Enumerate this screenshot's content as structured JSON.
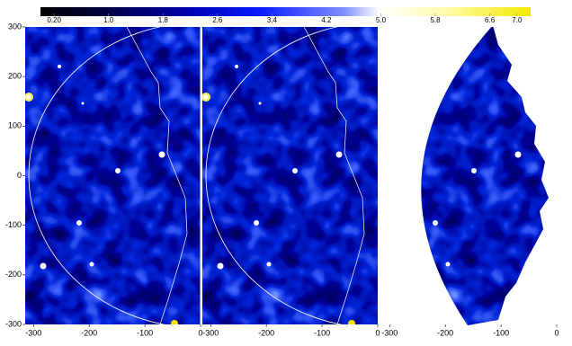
{
  "chart_data": {
    "type": "heatmap",
    "colorbar": {
      "clim": [
        0,
        7.2
      ],
      "ticks": [
        {
          "value": 0.2,
          "label": "0.20"
        },
        {
          "value": 1,
          "label": "1.0"
        },
        1.8,
        2.6,
        3.4,
        4.2,
        {
          "value": 5,
          "label": "5.0"
        },
        5.8,
        6.6,
        {
          "value": 7,
          "label": "7.0"
        }
      ]
    },
    "xlim": [
      -315,
      0
    ],
    "xticks": [
      -300,
      -200,
      -100,
      0
    ],
    "ylim": [
      -300,
      300
    ],
    "yticks": [
      300,
      200,
      100,
      0,
      -100,
      -200,
      -300
    ]
  }
}
